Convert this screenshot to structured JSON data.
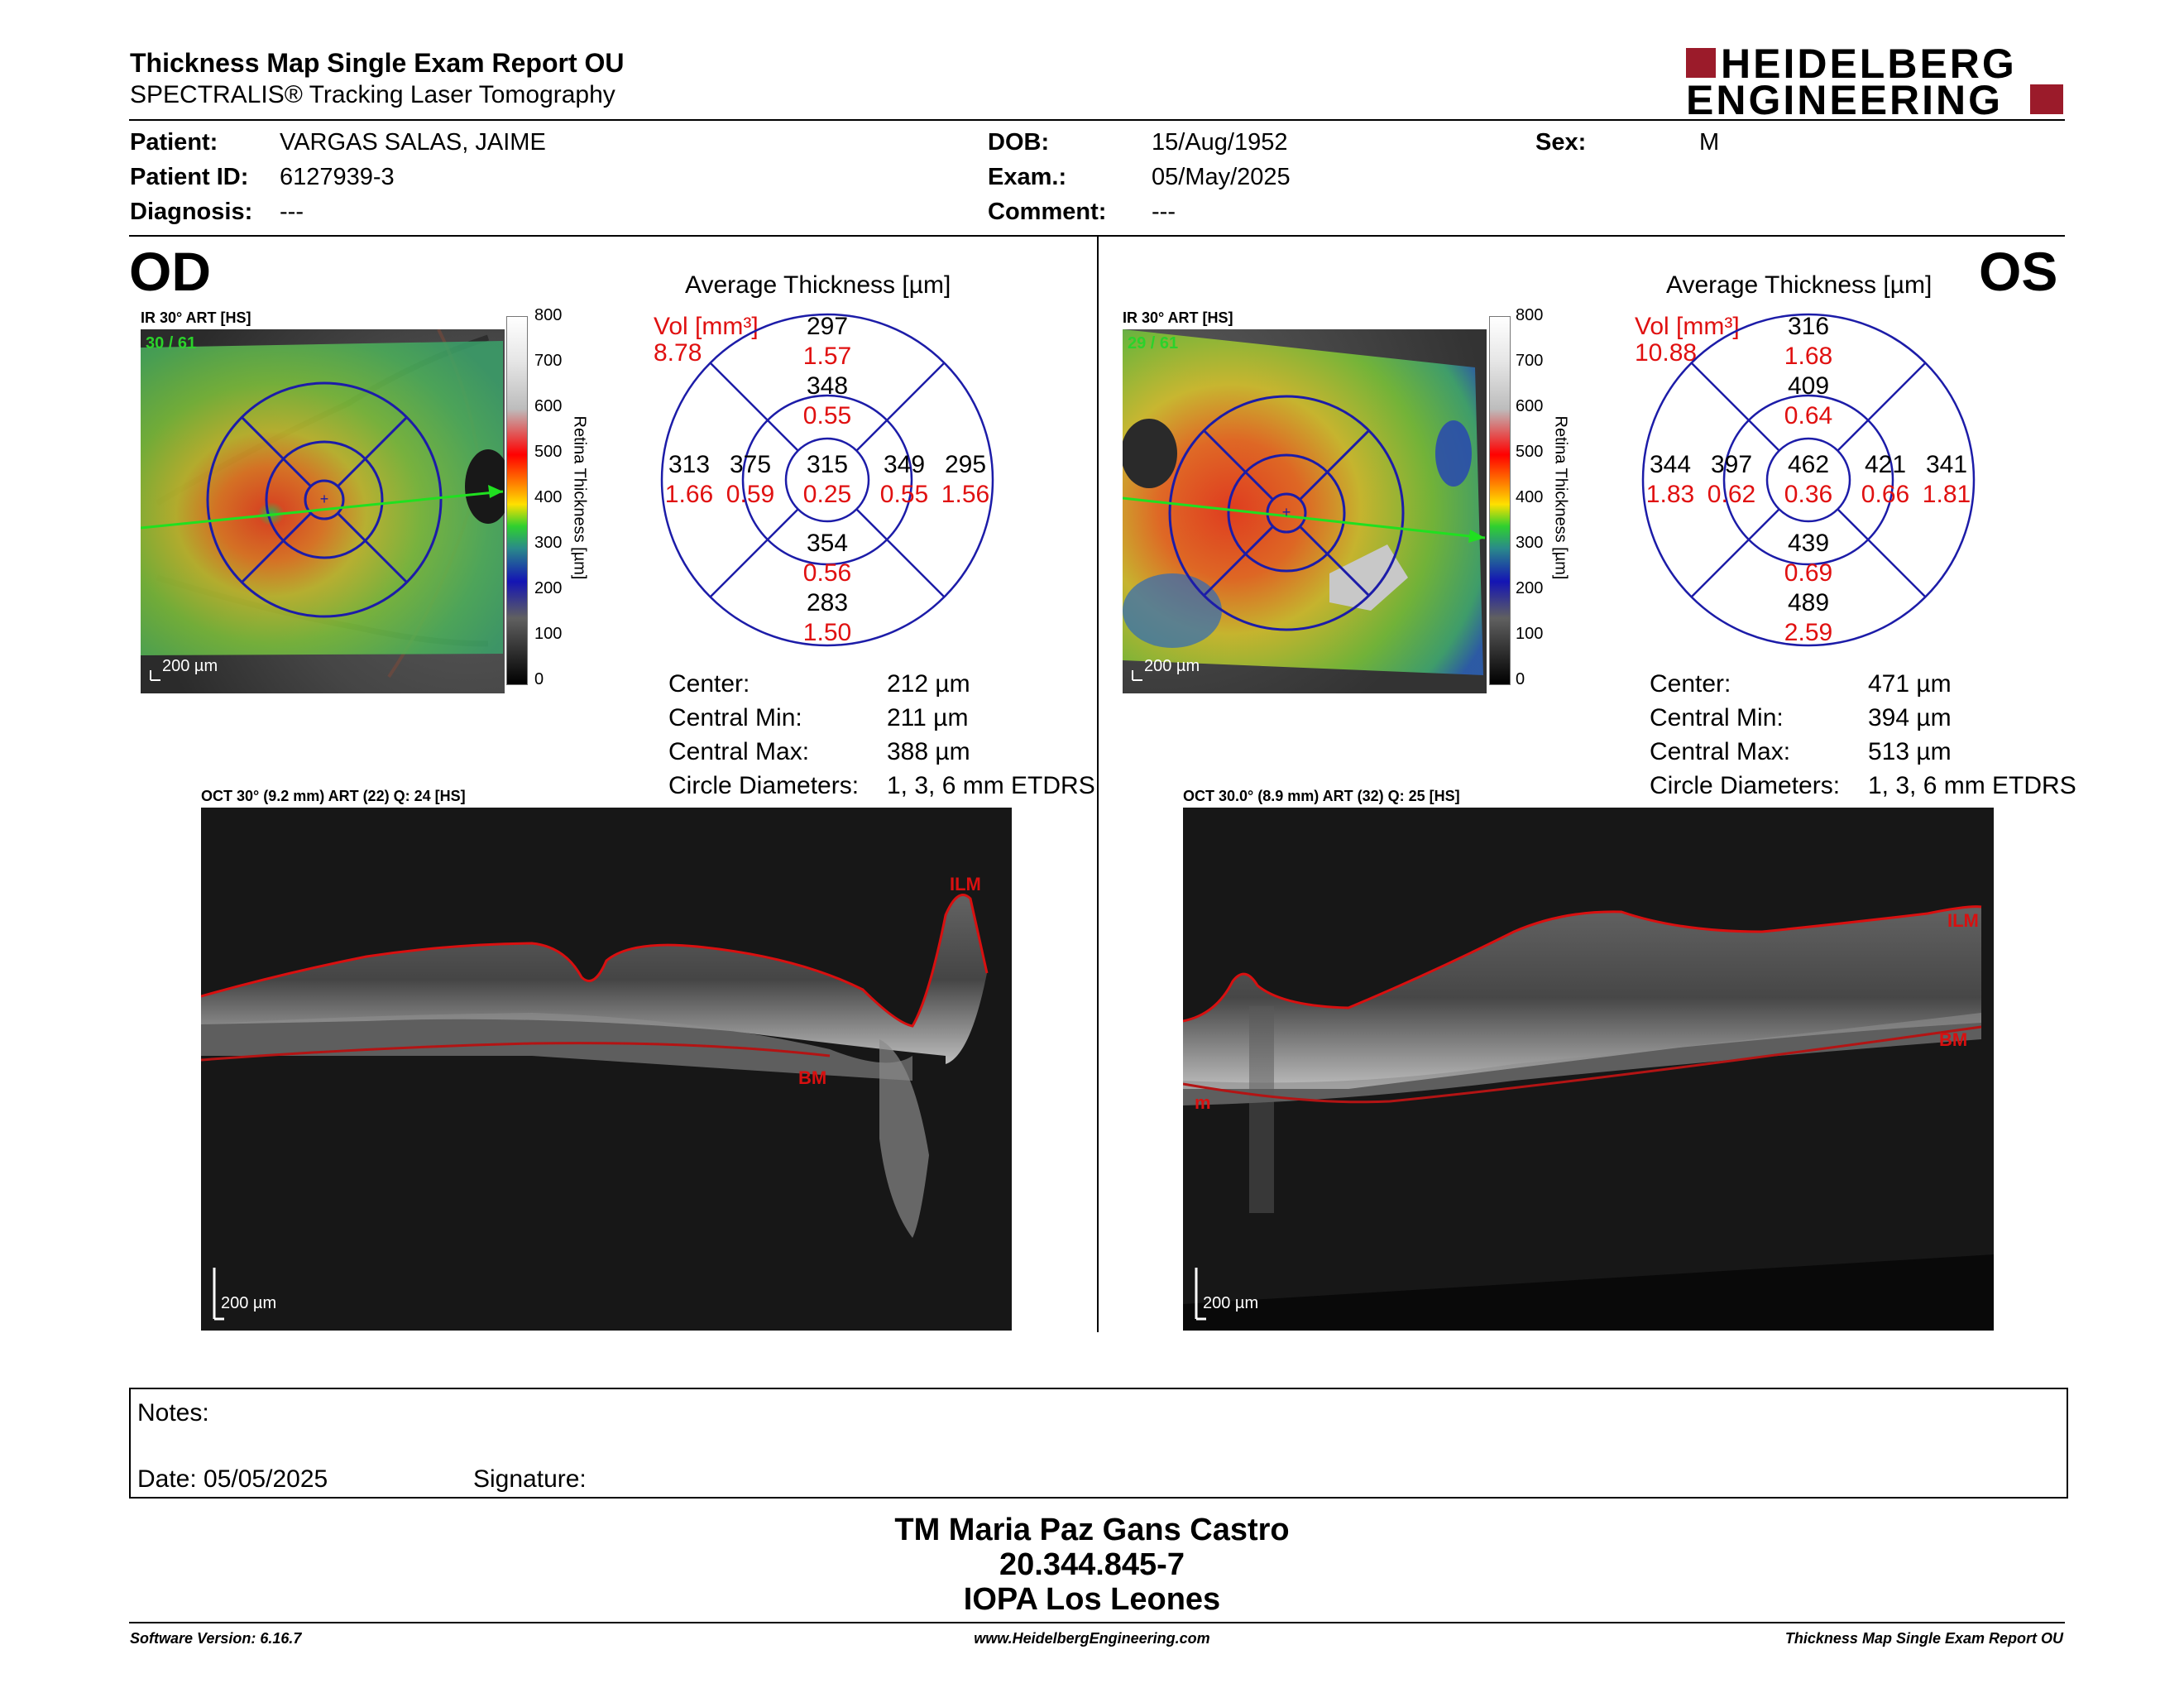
{
  "header": {
    "title": "Thickness Map Single Exam Report OU",
    "subtitle": "SPECTRALIS® Tracking Laser Tomography",
    "logo_line1": "HEIDELBERG",
    "logo_line2": "ENGINEERING",
    "brand_color": "#9b1b2a"
  },
  "patient": {
    "patient_label": "Patient:",
    "patient_value": "VARGAS SALAS, JAIME",
    "id_label": "Patient ID:",
    "id_value": "6127939-3",
    "diagnosis_label": "Diagnosis:",
    "diagnosis_value": "---",
    "dob_label": "DOB:",
    "dob_value": "15/Aug/1952",
    "exam_label": "Exam.:",
    "exam_value": "05/May/2025",
    "comment_label": "Comment:",
    "comment_value": "---",
    "sex_label": "Sex:",
    "sex_value": "M"
  },
  "od": {
    "eye": "OD",
    "ir_caption": "IR 30° ART [HS]",
    "frame_count": "30 / 61",
    "scale_label": "200 µm",
    "colorbar_ticks": [
      "800",
      "700",
      "600",
      "500",
      "400",
      "300",
      "200",
      "100",
      "0"
    ],
    "colorbar_title": "Retina Thickness [µm]",
    "avg_title": "Average Thickness [µm]",
    "vol_label": "Vol [mm³]",
    "vol_total": "8.78",
    "etdrs": {
      "outer_sup": {
        "t": "297",
        "v": "1.57"
      },
      "inner_sup": {
        "t": "348",
        "v": "0.55"
      },
      "outer_left": {
        "t": "313",
        "v": "1.66"
      },
      "inner_left": {
        "t": "375",
        "v": "0.59"
      },
      "center": {
        "t": "315",
        "v": "0.25"
      },
      "inner_right": {
        "t": "349",
        "v": "0.55"
      },
      "outer_right": {
        "t": "295",
        "v": "1.56"
      },
      "inner_inf": {
        "t": "354",
        "v": "0.56"
      },
      "outer_inf": {
        "t": "283",
        "v": "1.50"
      }
    },
    "stats": {
      "center_label": "Center:",
      "center_value": "212 µm",
      "min_label": "Central Min:",
      "min_value": "211 µm",
      "max_label": "Central Max:",
      "max_value": "388 µm",
      "diam_label": "Circle Diameters:",
      "diam_value": "1, 3, 6 mm ETDRS"
    },
    "oct_caption": "OCT 30° (9.2 mm) ART (22) Q: 24 [HS]",
    "oct_ilm": "ILM",
    "oct_bm": "BM",
    "oct_scale": "200 µm"
  },
  "os": {
    "eye": "OS",
    "ir_caption": "IR 30° ART [HS]",
    "frame_count": "29 / 61",
    "scale_label": "200 µm",
    "colorbar_ticks": [
      "800",
      "700",
      "600",
      "500",
      "400",
      "300",
      "200",
      "100",
      "0"
    ],
    "colorbar_title": "Retina Thickness [µm]",
    "avg_title": "Average Thickness [µm]",
    "vol_label": "Vol [mm³]",
    "vol_total": "10.88",
    "etdrs": {
      "outer_sup": {
        "t": "316",
        "v": "1.68"
      },
      "inner_sup": {
        "t": "409",
        "v": "0.64"
      },
      "outer_left": {
        "t": "344",
        "v": "1.83"
      },
      "inner_left": {
        "t": "397",
        "v": "0.62"
      },
      "center": {
        "t": "462",
        "v": "0.36"
      },
      "inner_right": {
        "t": "421",
        "v": "0.66"
      },
      "outer_right": {
        "t": "341",
        "v": "1.81"
      },
      "inner_inf": {
        "t": "439",
        "v": "0.69"
      },
      "outer_inf": {
        "t": "489",
        "v": "2.59"
      }
    },
    "stats": {
      "center_label": "Center:",
      "center_value": "471 µm",
      "min_label": "Central Min:",
      "min_value": "394 µm",
      "max_label": "Central Max:",
      "max_value": "513 µm",
      "diam_label": "Circle Diameters:",
      "diam_value": "1, 3, 6 mm ETDRS"
    },
    "oct_caption": "OCT 30.0° (8.9 mm) ART (32) Q: 25 [HS]",
    "oct_ilm": "ILM",
    "oct_bm": "BM",
    "oct_m": "m",
    "oct_scale": "200 µm"
  },
  "notes": {
    "notes_label": "Notes:",
    "date_label": "Date: 05/05/2025",
    "signature_label": "Signature:"
  },
  "signature": {
    "line1": "TM Maria Paz Gans Castro",
    "line2": "20.344.845-7",
    "line3": "IOPA Los Leones"
  },
  "footer": {
    "software": "Software Version: 6.16.7",
    "website": "www.HeidelbergEngineering.com",
    "report": "Thickness Map Single Exam Report OU"
  }
}
